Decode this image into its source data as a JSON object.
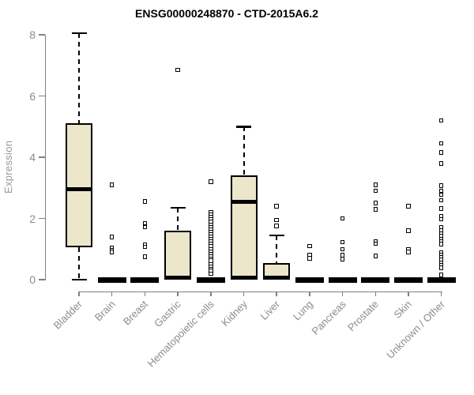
{
  "title": "ENSG00000248870 - CTD-2015A6.2",
  "colors": {
    "box_fill": "#ece6cb",
    "box_border": "#000000",
    "median": "#000000",
    "outlier": "#000000",
    "axis_line": "#808080",
    "tick_label": "#8c8c8c",
    "title_text": "#000000",
    "background": "#ffffff"
  },
  "chart_data": {
    "type": "boxplot",
    "title": "ENSG00000248870 - CTD-2015A6.2",
    "xlabel": "",
    "ylabel": "Expression",
    "ylim": [
      0,
      8.3
    ],
    "yticks": [
      0,
      2,
      4,
      6,
      8
    ],
    "grid": false,
    "legend": "none",
    "categories": [
      "Bladder",
      "Brain",
      "Breast",
      "Gastric",
      "Hematopoietic cells",
      "Kidney",
      "Liver",
      "Lung",
      "Pancreas",
      "Prostate",
      "Skin",
      "Unknown / Other"
    ],
    "series": [
      {
        "name": "Bladder",
        "low": 0,
        "q1": 1.05,
        "median": 2.95,
        "q3": 5.1,
        "high": 8.05,
        "outliers": []
      },
      {
        "name": "Brain",
        "low": 0,
        "q1": 0,
        "median": 0,
        "q3": 0,
        "high": 0,
        "outliers": [
          3.1,
          1.4,
          1.05,
          0.97,
          0.9
        ]
      },
      {
        "name": "Breast",
        "low": 0,
        "q1": 0,
        "median": 0,
        "q3": 0,
        "high": 0,
        "outliers": [
          2.55,
          1.85,
          1.72,
          1.15,
          1.07,
          0.75
        ]
      },
      {
        "name": "Gastric",
        "low": 0,
        "q1": 0,
        "median": 0.02,
        "q3": 1.6,
        "high": 2.35,
        "outliers": [
          6.85
        ]
      },
      {
        "name": "Hematopoietic cells",
        "low": 0,
        "q1": 0,
        "median": 0,
        "q3": 0,
        "high": 0,
        "outliers": [
          3.2,
          2.2,
          2.12,
          2.04,
          1.96,
          1.88,
          1.8,
          1.72,
          1.64,
          1.56,
          1.48,
          1.4,
          1.32,
          1.24,
          1.16,
          1.08,
          1.0,
          0.92,
          0.84,
          0.76,
          0.68,
          0.62,
          0.5,
          0.42,
          0.35,
          0.28,
          0.2
        ]
      },
      {
        "name": "Kidney",
        "low": 0,
        "q1": 0,
        "median": 2.55,
        "q3": 3.4,
        "high": 5.0,
        "outliers": []
      },
      {
        "name": "Liver",
        "low": 0,
        "q1": 0,
        "median": 0.02,
        "q3": 0.55,
        "high": 1.45,
        "outliers": [
          2.4,
          1.95,
          1.75
        ]
      },
      {
        "name": "Lung",
        "low": 0,
        "q1": 0,
        "median": 0,
        "q3": 0,
        "high": 0,
        "outliers": [
          1.1,
          0.8,
          0.7
        ]
      },
      {
        "name": "Pancreas",
        "low": 0,
        "q1": 0,
        "median": 0,
        "q3": 0,
        "high": 0,
        "outliers": [
          2.0,
          1.22,
          1.0,
          0.8,
          0.67
        ]
      },
      {
        "name": "Prostate",
        "low": 0,
        "q1": 0,
        "median": 0,
        "q3": 0,
        "high": 0,
        "outliers": [
          3.1,
          2.9,
          2.5,
          2.3,
          1.25,
          1.18,
          0.78
        ]
      },
      {
        "name": "Skin",
        "low": 0,
        "q1": 0,
        "median": 0,
        "q3": 0,
        "high": 0,
        "outliers": [
          2.4,
          1.6,
          1.0,
          0.9
        ]
      },
      {
        "name": "Unknown / Other",
        "low": 0,
        "q1": 0,
        "median": 0,
        "q3": 0,
        "high": 0,
        "outliers": [
          5.2,
          4.45,
          4.15,
          3.8,
          3.07,
          2.9,
          2.77,
          2.6,
          2.32,
          2.08,
          1.98,
          1.7,
          1.6,
          1.5,
          1.42,
          1.33,
          1.24,
          1.16,
          0.88,
          0.8,
          0.72,
          0.64,
          0.55,
          0.47,
          0.39,
          0.15
        ]
      }
    ]
  }
}
